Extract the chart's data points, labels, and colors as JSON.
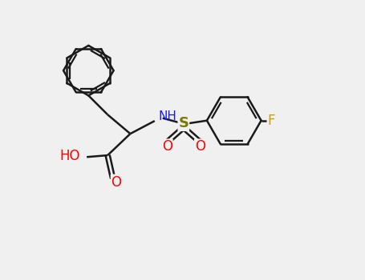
{
  "background_color": "#f0f0f0",
  "bond_color": "#1a1a1a",
  "bond_width": 1.8,
  "font_size": 11,
  "colors": {
    "N": "#1a1aff",
    "S": "#7a7a00",
    "O": "#ff0000",
    "F": "#c8a000",
    "C": "#1a1a1a",
    "bond": "#1a1a1a"
  },
  "xlim": [
    0,
    10
  ],
  "ylim": [
    0,
    8
  ]
}
